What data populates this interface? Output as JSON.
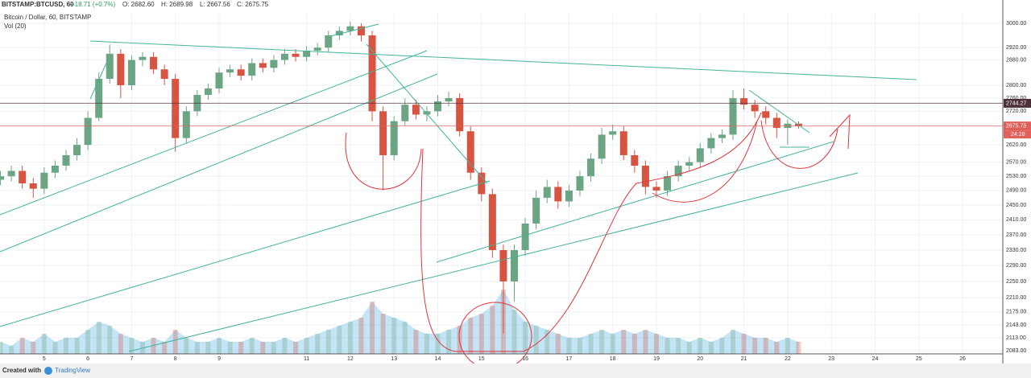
{
  "chart_data": {
    "type": "candlestick",
    "title": "BITSTAMP:BTCUSD, 60",
    "change": "+18.71 (+0.7%)",
    "ohlc_labels": [
      "O: 2682.60",
      "H: 2689.98",
      "L: 2667.56",
      "C: 2675.75"
    ],
    "subtitle": "Bitcoin / Dollar, 60, BITSTAMP",
    "indicator": "Vol (20)",
    "footer": [
      "Created with",
      "TradingView"
    ],
    "log_scale": true,
    "grid": true,
    "up_color": "#6ba583",
    "down_color": "#d75442",
    "volume_color": "#7fc3e8",
    "xlim": [
      3.99,
      26.92
    ],
    "xticks": [
      5,
      6,
      7,
      8,
      9,
      11,
      12,
      13,
      14,
      15,
      16,
      17,
      18,
      19,
      20,
      21,
      22,
      23,
      24,
      25,
      26
    ],
    "ylim": [
      2057,
      3038
    ],
    "yticks": [
      {
        "value": 3000,
        "label": "3000.00"
      },
      {
        "value": 2920,
        "label": "2920.00"
      },
      {
        "value": 2880,
        "label": "2880.00"
      },
      {
        "value": 2800,
        "label": "2800.00"
      },
      {
        "value": 2760,
        "label": "2760.00"
      },
      {
        "value": 2720,
        "label": "2720.00"
      },
      {
        "value": 2620,
        "label": "2620.00"
      },
      {
        "value": 2570,
        "label": "2570.00"
      },
      {
        "value": 2530,
        "label": "2530.00"
      },
      {
        "value": 2490,
        "label": "2490.00"
      },
      {
        "value": 2450,
        "label": "2450.00"
      },
      {
        "value": 2410,
        "label": "2410.00"
      },
      {
        "value": 2370,
        "label": "2370.00"
      },
      {
        "value": 2330,
        "label": "2330.00"
      },
      {
        "value": 2290,
        "label": "2290.00"
      },
      {
        "value": 2250,
        "label": "2250.00"
      },
      {
        "value": 2210,
        "label": "2210.00"
      },
      {
        "value": 2175,
        "label": "2175.00"
      },
      {
        "value": 2143,
        "label": "2143.00"
      },
      {
        "value": 2113,
        "label": "2113.00"
      },
      {
        "value": 2083,
        "label": "2083.00"
      }
    ],
    "price_lines": [
      {
        "value": 2744.27,
        "label": "2744.27",
        "color": "#4e2f3c"
      },
      {
        "value": 2675.75,
        "label": "2675.75",
        "color": "#e0605a"
      }
    ],
    "countdown": "24:28",
    "x": [
      4,
      4.25,
      4.5,
      4.75,
      5,
      5.25,
      5.5,
      5.75,
      6,
      6.25,
      6.5,
      6.75,
      7,
      7.25,
      7.5,
      7.75,
      8,
      8.25,
      8.5,
      8.75,
      9,
      9.25,
      9.5,
      9.75,
      10,
      10.25,
      10.5,
      10.75,
      11,
      11.25,
      11.5,
      11.75,
      12,
      12.25,
      12.5,
      12.75,
      13,
      13.25,
      13.5,
      13.75,
      14,
      14.25,
      14.5,
      14.75,
      15,
      15.25,
      15.5,
      15.75,
      16,
      16.25,
      16.5,
      16.75,
      17,
      17.25,
      17.5,
      17.75,
      18,
      18.25,
      18.5,
      18.75,
      19,
      19.25,
      19.5,
      19.75,
      20,
      20.25,
      20.5,
      20.75,
      21,
      21.25,
      21.5,
      21.75,
      22,
      22.25
    ],
    "open": [
      2520,
      2530,
      2545,
      2510,
      2495,
      2540,
      2560,
      2590,
      2620,
      2700,
      2820,
      2900,
      2800,
      2880,
      2890,
      2850,
      2820,
      2640,
      2720,
      2770,
      2790,
      2840,
      2850,
      2830,
      2870,
      2855,
      2880,
      2900,
      2890,
      2910,
      2920,
      2960,
      2975,
      2990,
      2960,
      2720,
      2590,
      2690,
      2740,
      2710,
      2720,
      2750,
      2760,
      2660,
      2540,
      2480,
      2330,
      2250,
      2330,
      2400,
      2470,
      2500,
      2460,
      2490,
      2530,
      2580,
      2650,
      2660,
      2590,
      2560,
      2500,
      2490,
      2530,
      2560,
      2570,
      2610,
      2640,
      2650,
      2760,
      2740,
      2720,
      2700,
      2670,
      2682.6
    ],
    "high": [
      2545,
      2560,
      2560,
      2525,
      2555,
      2575,
      2605,
      2640,
      2720,
      2840,
      2930,
      2915,
      2895,
      2905,
      2905,
      2865,
      2835,
      2735,
      2785,
      2805,
      2855,
      2865,
      2865,
      2885,
      2885,
      2895,
      2915,
      2915,
      2925,
      2935,
      2975,
      2990,
      3005,
      3000,
      2975,
      2735,
      2705,
      2760,
      2755,
      2735,
      2770,
      2780,
      2775,
      2675,
      2555,
      2495,
      2345,
      2345,
      2415,
      2490,
      2520,
      2515,
      2505,
      2545,
      2595,
      2670,
      2680,
      2675,
      2605,
      2575,
      2515,
      2545,
      2575,
      2585,
      2625,
      2655,
      2665,
      2785,
      2790,
      2755,
      2735,
      2715,
      2695,
      2689.98
    ],
    "low": [
      2505,
      2515,
      2495,
      2470,
      2480,
      2525,
      2545,
      2575,
      2605,
      2690,
      2805,
      2760,
      2785,
      2860,
      2835,
      2800,
      2600,
      2625,
      2705,
      2755,
      2775,
      2825,
      2815,
      2815,
      2840,
      2840,
      2865,
      2875,
      2875,
      2895,
      2905,
      2945,
      2960,
      2940,
      2690,
      2490,
      2575,
      2675,
      2695,
      2690,
      2705,
      2735,
      2645,
      2520,
      2460,
      2310,
      2123,
      2200,
      2315,
      2385,
      2455,
      2440,
      2445,
      2475,
      2515,
      2565,
      2635,
      2575,
      2540,
      2480,
      2470,
      2475,
      2515,
      2545,
      2555,
      2595,
      2625,
      2635,
      2725,
      2700,
      2680,
      2640,
      2620,
      2667.56
    ],
    "close": [
      2530,
      2545,
      2510,
      2495,
      2540,
      2560,
      2590,
      2620,
      2700,
      2820,
      2900,
      2800,
      2880,
      2890,
      2850,
      2820,
      2640,
      2720,
      2770,
      2790,
      2840,
      2850,
      2830,
      2870,
      2855,
      2880,
      2900,
      2890,
      2910,
      2920,
      2960,
      2975,
      2990,
      2960,
      2720,
      2590,
      2690,
      2740,
      2710,
      2720,
      2750,
      2760,
      2660,
      2540,
      2480,
      2330,
      2250,
      2330,
      2400,
      2470,
      2500,
      2460,
      2490,
      2530,
      2580,
      2650,
      2660,
      2590,
      2560,
      2500,
      2490,
      2530,
      2560,
      2570,
      2610,
      2640,
      2650,
      2760,
      2740,
      2720,
      2700,
      2670,
      2682.6,
      2675.75
    ],
    "volume": [
      3,
      2,
      4,
      3,
      5,
      3,
      4,
      4,
      6,
      8,
      7,
      5,
      4,
      3,
      4,
      3,
      6,
      4,
      3,
      3,
      4,
      3,
      3,
      4,
      3,
      3,
      4,
      3,
      4,
      5,
      6,
      7,
      8,
      9,
      13,
      10,
      9,
      8,
      6,
      5,
      5,
      6,
      7,
      9,
      10,
      12,
      16,
      11,
      8,
      7,
      6,
      5,
      4,
      4,
      5,
      6,
      5,
      6,
      5,
      6,
      5,
      4,
      4,
      3,
      4,
      3,
      4,
      6,
      5,
      4,
      4,
      3,
      4,
      3
    ],
    "volume_lim": [
      0,
      20
    ]
  }
}
